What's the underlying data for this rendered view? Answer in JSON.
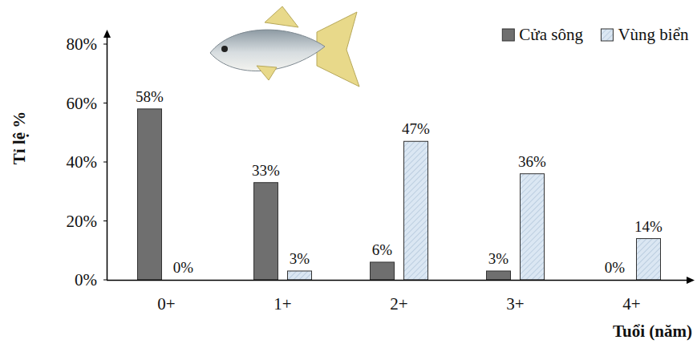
{
  "chart_data": {
    "type": "bar",
    "y_label": "Tỉ lệ %",
    "x_label": "Tuổi (năm)",
    "categories": [
      "0+",
      "1+",
      "2+",
      "3+",
      "4+"
    ],
    "series": [
      {
        "name": "Cửa sông",
        "color": "#6f6f6f",
        "values": [
          58,
          33,
          6,
          3,
          0
        ],
        "value_labels": [
          "58%",
          "33%",
          "6%",
          "3%",
          "0%"
        ]
      },
      {
        "name": "Vùng biển",
        "color": "#dbe7f3",
        "values": [
          0,
          3,
          47,
          36,
          14
        ],
        "value_labels": [
          "0%",
          "3%",
          "47%",
          "36%",
          "14%"
        ]
      }
    ],
    "ylim": [
      0,
      80
    ],
    "yticks": [
      {
        "value": 0,
        "label": "0%"
      },
      {
        "value": 20,
        "label": "20%"
      },
      {
        "value": 40,
        "label": "40%"
      },
      {
        "value": 60,
        "label": "60%"
      },
      {
        "value": 80,
        "label": "80%"
      }
    ],
    "grid": false,
    "legend": "top-right",
    "data_labels": true
  }
}
